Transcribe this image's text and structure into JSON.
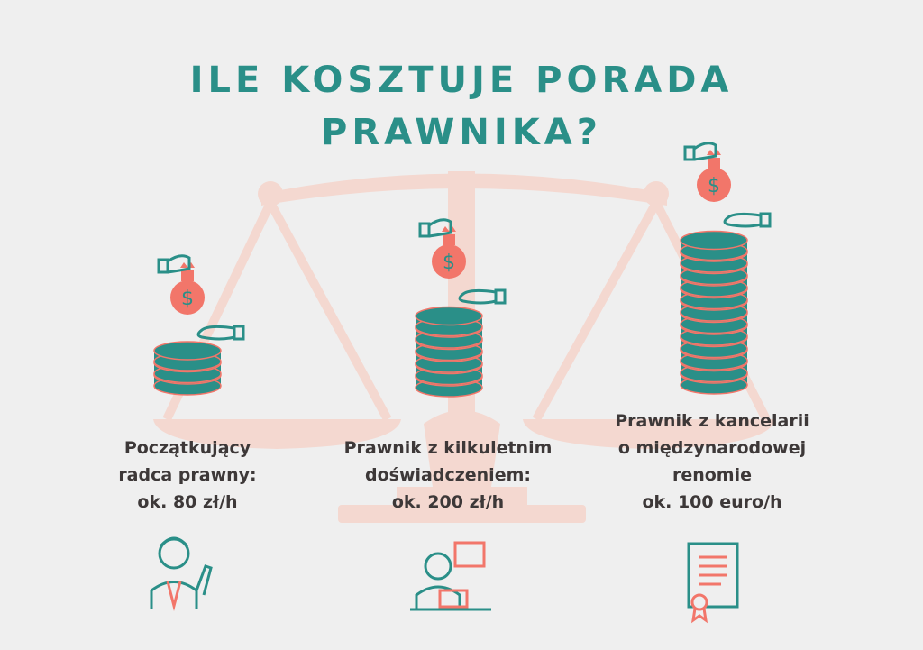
{
  "title": {
    "line1": "ILE KOSZTUJE PORADA",
    "line2": "PRAWNIKA?"
  },
  "colors": {
    "accent": "#2a8f88",
    "secondary": "#f2766a",
    "background": "#efefef",
    "text": "#3d3838",
    "scale": "#f4d8d0"
  },
  "columns": [
    {
      "lines": [
        "Początkujący",
        "radca prawny:",
        "ok. 80 zł/h"
      ],
      "icon": "young-lawyer-icon"
    },
    {
      "lines": [
        "Prawnik z kilkuletnim",
        "doświadczeniem:",
        "ok. 200 zł/h"
      ],
      "icon": "experienced-lawyer-icon"
    },
    {
      "lines": [
        "Prawnik z kancelarii",
        "o międzynarodowej",
        "renomie",
        "ok. 100 euro/h"
      ],
      "icon": "certificate-icon"
    }
  ],
  "icons": {
    "background": "scales-of-justice-icon",
    "payment": "money-bag-hand-icon",
    "stack": "coin-stack-icon"
  }
}
